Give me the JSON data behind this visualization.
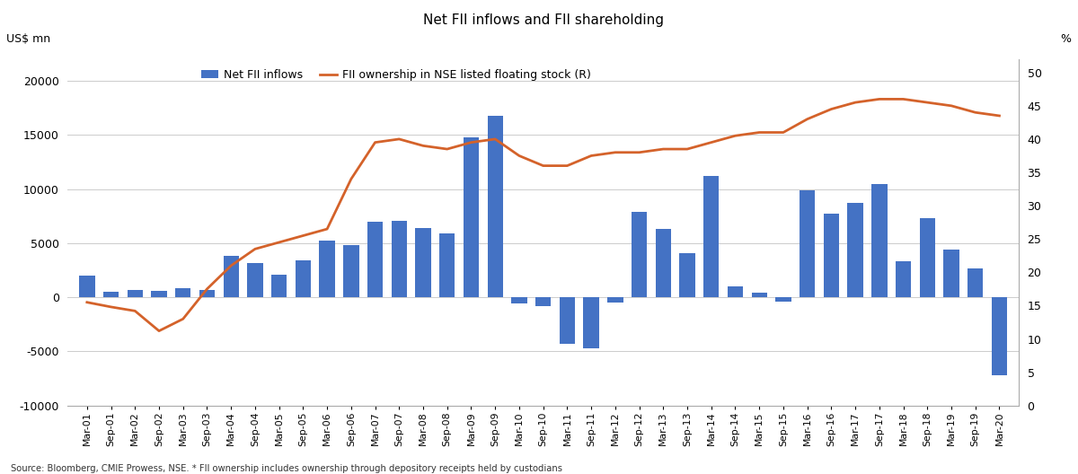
{
  "title": "Net FII inflows and FII shareholding",
  "ylabel_left": "US$ mn",
  "ylabel_right": "%",
  "source": "Source: Bloomberg, CMIE Prowess, NSE. * FII ownership includes ownership through depository receipts held by custodians",
  "bar_color": "#4472C4",
  "line_color": "#D4622A",
  "ylim_left": [
    -10000,
    22000
  ],
  "ylim_right": [
    0,
    52
  ],
  "yticks_left": [
    -10000,
    -5000,
    0,
    5000,
    10000,
    15000,
    20000
  ],
  "yticks_right": [
    0,
    5,
    10,
    15,
    20,
    25,
    30,
    35,
    40,
    45,
    50
  ],
  "labels": [
    "Mar-01",
    "Sep-01",
    "Mar-02",
    "Sep-02",
    "Mar-03",
    "Sep-03",
    "Mar-04",
    "Sep-04",
    "Mar-05",
    "Sep-05",
    "Mar-06",
    "Sep-06",
    "Mar-07",
    "Sep-07",
    "Mar-08",
    "Sep-08",
    "Mar-09",
    "Sep-09",
    "Mar-10",
    "Sep-10",
    "Mar-11",
    "Sep-11",
    "Mar-12",
    "Sep-12",
    "Mar-13",
    "Sep-13",
    "Mar-14",
    "Sep-14",
    "Mar-15",
    "Sep-15",
    "Mar-16",
    "Sep-16",
    "Mar-17",
    "Sep-17",
    "Mar-18",
    "Sep-18",
    "Mar-19",
    "Sep-19",
    "Mar-20"
  ],
  "bar_values": [
    2000,
    500,
    700,
    600,
    800,
    700,
    3800,
    3200,
    2100,
    3400,
    5200,
    4800,
    7000,
    7100,
    6400,
    5900,
    14800,
    16800,
    -600,
    -800,
    -4300,
    -4700,
    -500,
    7900,
    6300,
    4100,
    11200,
    1000,
    400,
    -400,
    9900,
    7700,
    8700,
    10500,
    3300,
    7300,
    4400,
    2700,
    -7200
  ],
  "fii_ownership": [
    15.5,
    14.8,
    14.2,
    11.2,
    13.0,
    17.5,
    21.0,
    23.5,
    24.5,
    25.5,
    26.5,
    34.0,
    39.5,
    40.0,
    39.0,
    38.5,
    39.5,
    40.0,
    37.5,
    36.0,
    36.0,
    37.5,
    38.0,
    38.0,
    38.5,
    38.5,
    39.5,
    40.5,
    41.0,
    41.0,
    43.0,
    44.5,
    45.5,
    46.0,
    46.0,
    45.5,
    45.0,
    44.0,
    43.5
  ]
}
